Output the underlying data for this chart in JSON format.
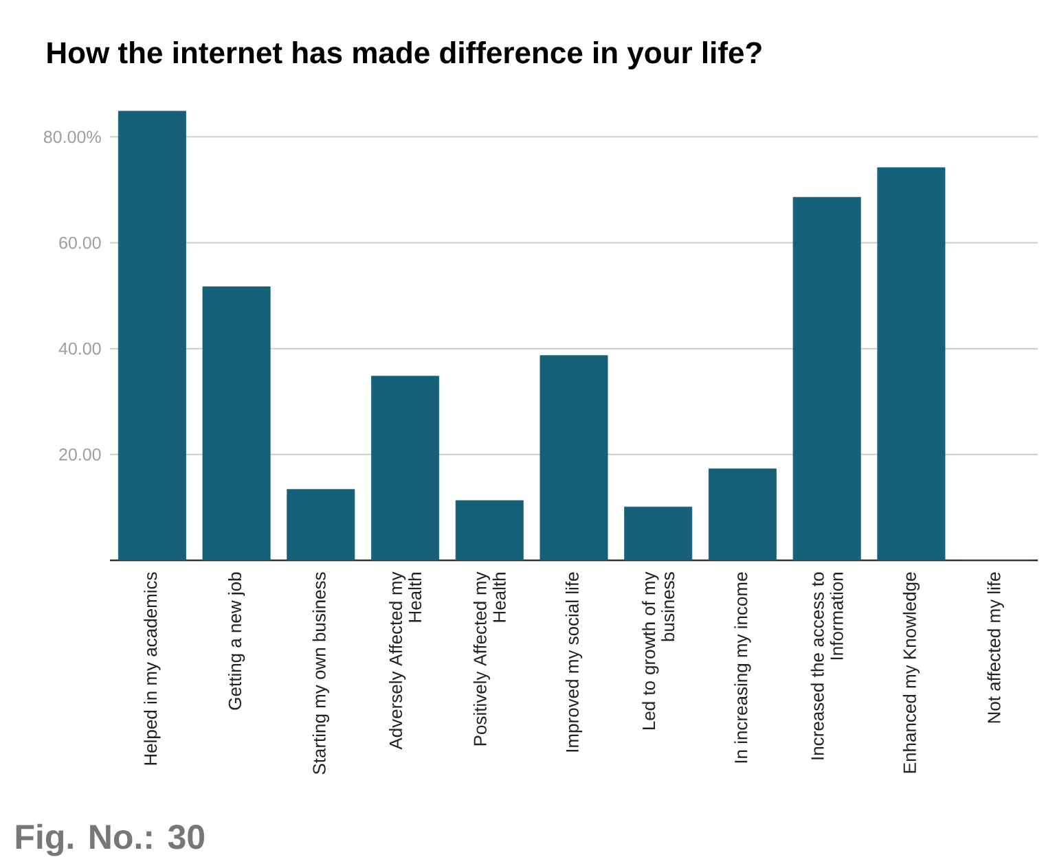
{
  "chart_data": {
    "type": "bar",
    "title": "How the internet has made difference in your life?",
    "categories": [
      "Helped in my academics",
      "Getting a new job",
      "Starting my own business",
      "Adversely Affected my Health",
      "Positively Affected my Health",
      "Improved my social life",
      "Led to growth of my business",
      "In increasing my income",
      "Increased the access to Information",
      "Enhanced my Knowledge",
      "Not affected my life"
    ],
    "values": [
      84.9,
      51.7,
      13.4,
      34.8,
      11.3,
      38.7,
      10.1,
      17.3,
      68.6,
      74.2,
      0
    ],
    "color": "#17607a",
    "ylim": [
      0,
      84.9
    ],
    "yticks": [
      {
        "value": 20,
        "label": "20.00"
      },
      {
        "value": 40,
        "label": "40.00"
      },
      {
        "value": 60,
        "label": "60.00"
      },
      {
        "value": 80,
        "label": "80.00%"
      }
    ],
    "grid": "y",
    "annotations": [
      "Fig. No.: 30"
    ]
  }
}
